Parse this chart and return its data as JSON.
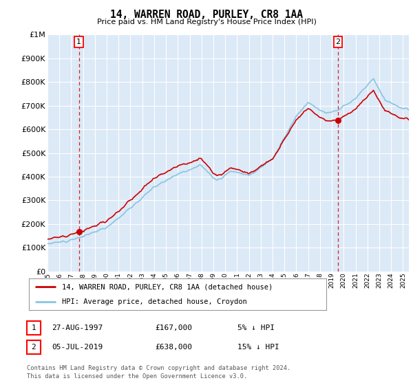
{
  "title": "14, WARREN ROAD, PURLEY, CR8 1AA",
  "subtitle": "Price paid vs. HM Land Registry's House Price Index (HPI)",
  "legend_line1": "14, WARREN ROAD, PURLEY, CR8 1AA (detached house)",
  "legend_line2": "HPI: Average price, detached house, Croydon",
  "sale1_date": "27-AUG-1997",
  "sale1_price": 167000,
  "sale1_label": "1",
  "sale1_year": 1997.65,
  "sale2_date": "05-JUL-2019",
  "sale2_price": 638000,
  "sale2_label": "2",
  "sale2_year": 2019.51,
  "footer_line1": "Contains HM Land Registry data © Crown copyright and database right 2024.",
  "footer_line2": "This data is licensed under the Open Government Licence v3.0.",
  "hpi_color": "#89c4e1",
  "property_color": "#cc0000",
  "background_color": "#dce9f7",
  "grid_color": "#ffffff",
  "ylim_max": 1000000,
  "xlim_start": 1995.0,
  "xlim_end": 2025.5,
  "sale1_pct": "5%",
  "sale2_pct": "15%"
}
